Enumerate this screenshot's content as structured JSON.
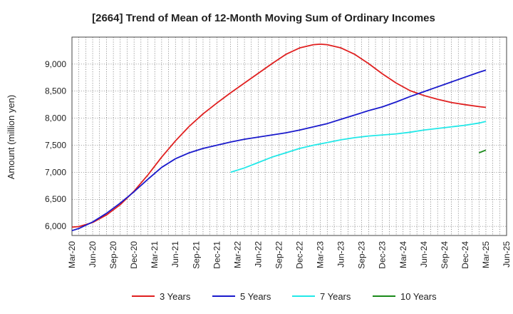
{
  "chart_data": {
    "type": "line",
    "title": "[2664]  Trend of Mean of 12-Month Moving Sum of Ordinary Incomes",
    "xlabel": "",
    "ylabel": "Amount (million yen)",
    "ylim": [
      5830,
      9500
    ],
    "yticks": [
      6000,
      6500,
      7000,
      7500,
      8000,
      8500,
      9000
    ],
    "ytick_labels": [
      "6,000",
      "6,500",
      "7,000",
      "7,500",
      "8,000",
      "8,500",
      "9,000"
    ],
    "x_start": "Mar-20",
    "x_end": "Jun-25",
    "xticks": [
      {
        "label": "Mar-20",
        "m": 0
      },
      {
        "label": "Jun-20",
        "m": 3
      },
      {
        "label": "Sep-20",
        "m": 6
      },
      {
        "label": "Dec-20",
        "m": 9
      },
      {
        "label": "Mar-21",
        "m": 12
      },
      {
        "label": "Jun-21",
        "m": 15
      },
      {
        "label": "Sep-21",
        "m": 18
      },
      {
        "label": "Dec-21",
        "m": 21
      },
      {
        "label": "Mar-22",
        "m": 24
      },
      {
        "label": "Jun-22",
        "m": 27
      },
      {
        "label": "Sep-22",
        "m": 30
      },
      {
        "label": "Dec-22",
        "m": 33
      },
      {
        "label": "Mar-23",
        "m": 36
      },
      {
        "label": "Jun-23",
        "m": 39
      },
      {
        "label": "Sep-23",
        "m": 42
      },
      {
        "label": "Dec-23",
        "m": 45
      },
      {
        "label": "Mar-24",
        "m": 48
      },
      {
        "label": "Jun-24",
        "m": 51
      },
      {
        "label": "Sep-24",
        "m": 54
      },
      {
        "label": "Dec-24",
        "m": 57
      },
      {
        "label": "Mar-25",
        "m": 60
      },
      {
        "label": "Jun-25",
        "m": 63
      }
    ],
    "grid": true,
    "legend_position": "bottom",
    "series": [
      {
        "name": "3 Years",
        "color": "#e02020",
        "points": [
          [
            0,
            5985
          ],
          [
            1,
            5995
          ],
          [
            3,
            6070
          ],
          [
            5,
            6210
          ],
          [
            7,
            6400
          ],
          [
            9,
            6650
          ],
          [
            11,
            6950
          ],
          [
            13,
            7280
          ],
          [
            15,
            7580
          ],
          [
            17,
            7850
          ],
          [
            19,
            8080
          ],
          [
            21,
            8280
          ],
          [
            23,
            8470
          ],
          [
            25,
            8650
          ],
          [
            27,
            8830
          ],
          [
            29,
            9010
          ],
          [
            31,
            9180
          ],
          [
            33,
            9300
          ],
          [
            35,
            9360
          ],
          [
            36,
            9370
          ],
          [
            37,
            9360
          ],
          [
            39,
            9300
          ],
          [
            41,
            9180
          ],
          [
            43,
            9010
          ],
          [
            45,
            8820
          ],
          [
            47,
            8650
          ],
          [
            49,
            8510
          ],
          [
            51,
            8420
          ],
          [
            53,
            8350
          ],
          [
            55,
            8290
          ],
          [
            57,
            8250
          ],
          [
            59,
            8215
          ],
          [
            60,
            8200
          ]
        ]
      },
      {
        "name": "5 Years",
        "color": "#1a1acc",
        "points": [
          [
            0,
            5920
          ],
          [
            1,
            5960
          ],
          [
            3,
            6080
          ],
          [
            5,
            6240
          ],
          [
            7,
            6430
          ],
          [
            9,
            6640
          ],
          [
            11,
            6870
          ],
          [
            13,
            7090
          ],
          [
            15,
            7250
          ],
          [
            17,
            7360
          ],
          [
            19,
            7440
          ],
          [
            21,
            7500
          ],
          [
            23,
            7560
          ],
          [
            25,
            7610
          ],
          [
            27,
            7650
          ],
          [
            29,
            7690
          ],
          [
            31,
            7730
          ],
          [
            33,
            7780
          ],
          [
            35,
            7840
          ],
          [
            37,
            7900
          ],
          [
            39,
            7980
          ],
          [
            41,
            8060
          ],
          [
            43,
            8140
          ],
          [
            45,
            8210
          ],
          [
            47,
            8300
          ],
          [
            49,
            8400
          ],
          [
            51,
            8490
          ],
          [
            53,
            8580
          ],
          [
            55,
            8670
          ],
          [
            57,
            8760
          ],
          [
            59,
            8850
          ],
          [
            60,
            8890
          ]
        ]
      },
      {
        "name": "7 Years",
        "color": "#22e8e8",
        "points": [
          [
            23,
            7000
          ],
          [
            25,
            7080
          ],
          [
            27,
            7180
          ],
          [
            29,
            7280
          ],
          [
            31,
            7360
          ],
          [
            33,
            7440
          ],
          [
            35,
            7500
          ],
          [
            37,
            7550
          ],
          [
            39,
            7600
          ],
          [
            41,
            7640
          ],
          [
            43,
            7670
          ],
          [
            45,
            7690
          ],
          [
            47,
            7710
          ],
          [
            49,
            7740
          ],
          [
            51,
            7780
          ],
          [
            53,
            7810
          ],
          [
            55,
            7840
          ],
          [
            57,
            7870
          ],
          [
            59,
            7910
          ],
          [
            60,
            7940
          ]
        ]
      },
      {
        "name": "10 Years",
        "color": "#1a8a1a",
        "points": [
          [
            59,
            7360
          ],
          [
            60,
            7410
          ]
        ]
      }
    ]
  }
}
